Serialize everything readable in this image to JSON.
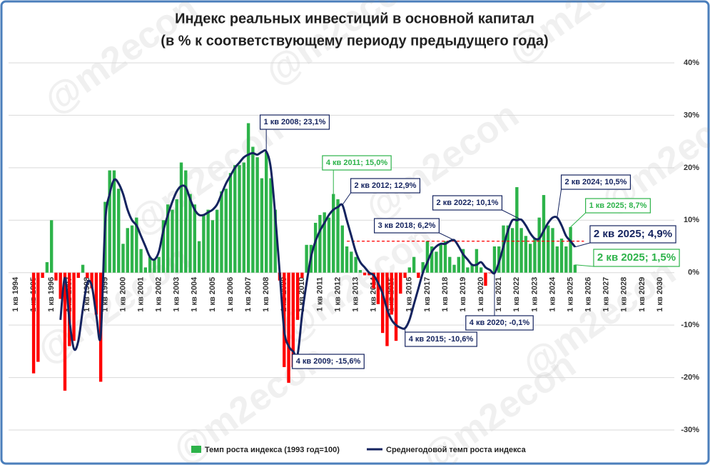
{
  "chart_data": {
    "type": "bar_line",
    "title": [
      "Индекс реальных инвестиций в основной капитал",
      "(в % к соответствующему периоду предыдущего года)"
    ],
    "watermark": "@m2econ",
    "categories": [
      "1 кв 1994",
      null,
      null,
      null,
      "1 кв 1995",
      null,
      null,
      null,
      "1 кв 1996",
      null,
      null,
      null,
      "1 кв 1997",
      null,
      null,
      null,
      "1 кв 1998",
      null,
      null,
      null,
      "1 кв 1999",
      null,
      null,
      null,
      "1 кв 2000",
      null,
      null,
      null,
      "1 кв 2001",
      null,
      null,
      null,
      "1 кв 2002",
      null,
      null,
      null,
      "1 кв 2003",
      null,
      null,
      null,
      "1 кв 2004",
      null,
      null,
      null,
      "1 кв 2005",
      null,
      null,
      null,
      "1 кв 2006",
      null,
      null,
      null,
      "1 кв 2007",
      null,
      null,
      null,
      "1 кв 2008",
      null,
      null,
      null,
      "1 кв 2009",
      null,
      null,
      null,
      "1 кв 2010",
      null,
      null,
      null,
      "1 кв 2011",
      null,
      null,
      null,
      "1 кв 2012",
      null,
      null,
      null,
      "1 кв 2013",
      null,
      null,
      null,
      "1 кв 2014",
      null,
      null,
      null,
      "1 кв 2015",
      null,
      null,
      null,
      "1 кв 2016",
      null,
      null,
      null,
      "1 кв 2017",
      null,
      null,
      null,
      "1 кв 2018",
      null,
      null,
      null,
      "1 кв 2019",
      null,
      null,
      null,
      "1 кв 2020",
      null,
      null,
      null,
      "1 кв 2021",
      null,
      null,
      null,
      "1 кв 2022",
      null,
      null,
      null,
      "1 кв 2023",
      null,
      null,
      null,
      "1 кв 2024",
      null,
      null,
      null,
      "1 кв 2025",
      null,
      null,
      null,
      "1 кв 2026",
      null,
      null,
      null,
      "1 кв 2027",
      null,
      null,
      null,
      "1 кв 2028",
      null,
      null,
      null,
      "1 кв 2029",
      null,
      null,
      null,
      "1 кв 2030"
    ],
    "series": [
      {
        "name": "Темп роста индекса (1993 год=100)",
        "kind": "bar",
        "color": "#2db34a",
        "negative_color": "#ff0000",
        "values": [
          null,
          null,
          null,
          null,
          -19.2,
          -17,
          -1,
          2,
          10,
          -1.5,
          -5,
          -22.5,
          -14,
          -13,
          -1,
          1.5,
          -1,
          -3,
          -8,
          -20.8,
          13.5,
          19.5,
          19.5,
          16,
          5.5,
          8.5,
          9,
          10.5,
          4.5,
          1,
          3,
          2.5,
          3,
          10,
          13,
          12,
          14,
          21,
          19.5,
          15,
          13,
          6,
          11,
          12,
          10,
          12,
          15.5,
          16,
          19,
          20.5,
          20.5,
          21,
          28.5,
          24,
          22,
          18,
          23,
          18,
          12,
          -1.5,
          -18,
          -21,
          -18,
          -9,
          -1,
          5.3,
          5.3,
          9.5,
          11,
          11.5,
          10.5,
          15,
          14,
          9,
          5,
          4,
          3,
          0.5,
          -0.5,
          -0.5,
          -3,
          -6,
          -11.5,
          -14,
          -8,
          -13,
          -4,
          -1,
          1,
          3,
          -1,
          2,
          6,
          5,
          4,
          5.5,
          6,
          3,
          1.5,
          3,
          4.5,
          1,
          1.5,
          4.5,
          1,
          -2.5,
          -0.1,
          5,
          5,
          9,
          9,
          8.5,
          16.3,
          8.5,
          7,
          5.5,
          6.5,
          10.5,
          14.8,
          9,
          8.5,
          5,
          6.5,
          5,
          8.7,
          1.5,
          null,
          null,
          null,
          null,
          null,
          null,
          null,
          null,
          null,
          null,
          null,
          null,
          null,
          null,
          null,
          null,
          null,
          null,
          null
        ]
      },
      {
        "name": "Среднегодовой темп роста индекса",
        "kind": "line",
        "color": "#14235f",
        "values": [
          null,
          null,
          null,
          null,
          null,
          null,
          null,
          null,
          null,
          null,
          -9,
          -1,
          -9,
          -14.5,
          -13,
          -7,
          -2,
          -2.5,
          -8,
          -12,
          9.5,
          15,
          17.7,
          17,
          15,
          12,
          10,
          9,
          7,
          5,
          3,
          2.5,
          4,
          8,
          11,
          13.5,
          15.5,
          16.5,
          16.3,
          14,
          12,
          11,
          11,
          11.5,
          12,
          13,
          15,
          17,
          18.5,
          20,
          21,
          22,
          22.5,
          22.8,
          22.5,
          23,
          23.1,
          20,
          11,
          0,
          -11,
          -14,
          -15,
          -15.6,
          -8,
          -2,
          3,
          6,
          8,
          9.5,
          11,
          12,
          12.5,
          12.9,
          10,
          7,
          4,
          2,
          1,
          0,
          -0.5,
          -2,
          -4,
          -7,
          -9,
          -10,
          -10.5,
          -10.6,
          -9,
          -6,
          -3,
          0,
          2,
          4,
          5,
          5.5,
          5.5,
          6,
          6.2,
          5,
          3.5,
          2.5,
          1.5,
          1.5,
          2,
          1,
          0.5,
          -0.1,
          2,
          5,
          8,
          10,
          10,
          10.1,
          9,
          7.5,
          6.5,
          6.5,
          8,
          9.5,
          10.5,
          10.5,
          9,
          7,
          6,
          4.9,
          null,
          null,
          null,
          null,
          null,
          null,
          null,
          null,
          null,
          null,
          null,
          null,
          null,
          null,
          null,
          null,
          null,
          null,
          null
        ]
      }
    ],
    "ylim": [
      -30,
      40
    ],
    "yticks": [
      {
        "value": -30,
        "label": "-30%"
      },
      {
        "value": -20,
        "label": "-20%"
      },
      {
        "value": -10,
        "label": "-10%"
      },
      {
        "value": 0,
        "label": "0%"
      },
      {
        "value": 10,
        "label": "10%"
      },
      {
        "value": 20,
        "label": "20%"
      },
      {
        "value": 30,
        "label": "30%"
      },
      {
        "value": 40,
        "label": "40%"
      }
    ],
    "grid": true,
    "ref_line": {
      "value": 6,
      "color": "#ff0000"
    },
    "legend": "bottom",
    "annotations": [
      {
        "text": "1 кв 2008; 23,1%",
        "color": "#14235f"
      },
      {
        "text": "4 кв 2009; -15,6%",
        "color": "#14235f"
      },
      {
        "text": "4 кв 2011; 15,0%",
        "color": "#2db34a"
      },
      {
        "text": "2 кв 2012; 12,9%",
        "color": "#14235f"
      },
      {
        "text": "4 кв 2015; -10,6%",
        "color": "#14235f"
      },
      {
        "text": "3 кв 2018; 6,2%",
        "color": "#14235f"
      },
      {
        "text": "4 кв 2020; -0,1%",
        "color": "#14235f"
      },
      {
        "text": "2 кв 2022; 10,1%",
        "color": "#14235f"
      },
      {
        "text": "2 кв 2024; 10,5%",
        "color": "#14235f"
      },
      {
        "text": "1 кв 2025; 8,7%",
        "color": "#2db34a"
      },
      {
        "text": "2 кв 2025; 4,9%",
        "color": "#14235f"
      },
      {
        "text": "2 кв 2025; 1,5%",
        "color": "#2db34a"
      }
    ]
  }
}
